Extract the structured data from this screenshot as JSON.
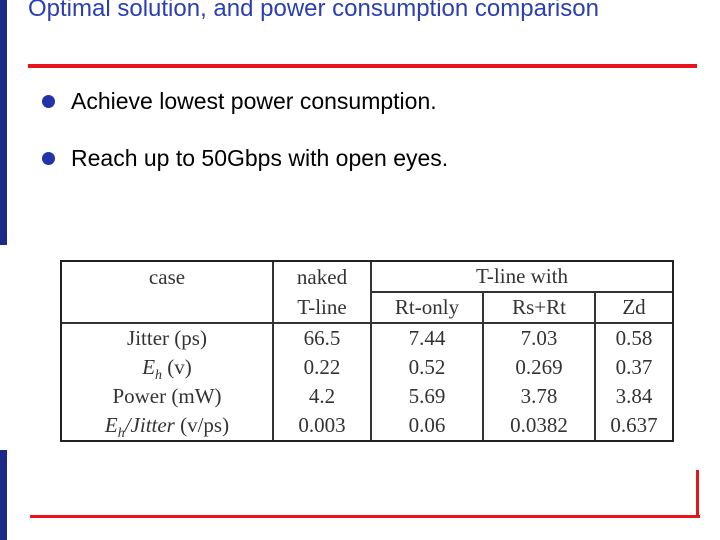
{
  "header": {
    "title": "Optimal solution, and power consumption comparison"
  },
  "bullets": [
    "Achieve lowest power consumption.",
    "Reach up to 50Gbps with open eyes."
  ],
  "table": {
    "head": {
      "case": "case",
      "naked": [
        "naked",
        "T-line"
      ],
      "group": "T-line with",
      "sub": [
        "Rt-only",
        "Rs+Rt",
        "Zd"
      ]
    },
    "rows": [
      {
        "label": [
          "Jitter",
          " (ps)"
        ],
        "values": [
          66.5,
          7.44,
          7.03,
          0.58
        ]
      },
      {
        "label": [
          "E",
          "h",
          " (v)"
        ],
        "values": [
          0.22,
          0.52,
          0.269,
          0.37
        ]
      },
      {
        "label": [
          "Power",
          " (mW)"
        ],
        "values": [
          4.2,
          5.69,
          3.78,
          3.84
        ]
      },
      {
        "label": [
          "E",
          "h",
          "/Jitter",
          " (v/ps)"
        ],
        "values": [
          0.003,
          0.06,
          0.0382,
          0.637
        ]
      }
    ]
  }
}
